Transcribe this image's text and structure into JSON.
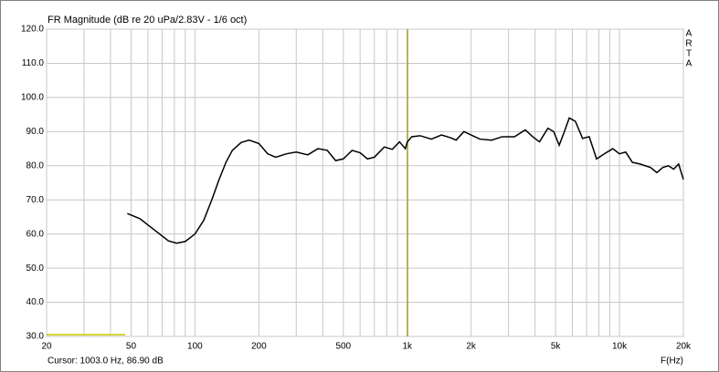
{
  "chart_data": {
    "type": "line",
    "title": "FR Magnitude (dB re 20 uPa/2.83V - 1/6 oct)",
    "side_label": "ARTA",
    "x_label": "F(Hz)",
    "cursor_label": "Cursor: 1003.0 Hz, 86.90 dB",
    "cursor_x": 1003.0,
    "cursor_color": "#a0a030",
    "xscale": "log",
    "grid": true,
    "xlim": [
      20,
      20000
    ],
    "ylim": [
      30,
      120
    ],
    "xticks": [
      20,
      50,
      100,
      200,
      500,
      {
        "value": 1000,
        "label": "1k"
      },
      {
        "value": 2000,
        "label": "2k"
      },
      {
        "value": 5000,
        "label": "5k"
      },
      {
        "value": 10000,
        "label": "10k"
      },
      {
        "value": 20000,
        "label": "20k"
      }
    ],
    "xminorticks": [
      30,
      40,
      60,
      70,
      80,
      90,
      300,
      400,
      600,
      700,
      800,
      900,
      3000,
      4000,
      6000,
      7000,
      8000,
      9000
    ],
    "yticks": [
      {
        "value": 30,
        "label": "30.0"
      },
      {
        "value": 40,
        "label": "40.0"
      },
      {
        "value": 50,
        "label": "50.0"
      },
      {
        "value": 60,
        "label": "60.0"
      },
      {
        "value": 70,
        "label": "70.0"
      },
      {
        "value": 80,
        "label": "80.0"
      },
      {
        "value": 90,
        "label": "90.0"
      },
      {
        "value": 100,
        "label": "100.0"
      },
      {
        "value": 110,
        "label": "110.0"
      },
      {
        "value": 120,
        "label": "120.0"
      }
    ],
    "series": [
      {
        "color": "#000000",
        "x": [
          48,
          55,
          65,
          75,
          82,
          90,
          100,
          110,
          120,
          130,
          140,
          150,
          165,
          180,
          200,
          220,
          240,
          270,
          300,
          340,
          380,
          420,
          460,
          500,
          550,
          600,
          650,
          700,
          780,
          850,
          920,
          980,
          1000,
          1050,
          1150,
          1300,
          1450,
          1600,
          1700,
          1850,
          2000,
          2200,
          2500,
          2800,
          3200,
          3600,
          3900,
          4200,
          4600,
          4900,
          5200,
          5500,
          5800,
          6200,
          6700,
          7200,
          7800,
          8500,
          9300,
          10000,
          10700,
          11500,
          12500,
          14000,
          15000,
          16000,
          17000,
          18000,
          19000,
          20000
        ],
        "values": [
          66,
          64.5,
          61,
          58,
          57.3,
          57.8,
          60,
          64,
          70,
          76,
          81,
          84.5,
          86.8,
          87.5,
          86.5,
          83.5,
          82.5,
          83.5,
          84,
          83.2,
          85,
          84.5,
          81.5,
          82,
          84.5,
          83.8,
          82,
          82.5,
          85.5,
          84.8,
          87,
          85,
          86.9,
          88.5,
          88.8,
          87.8,
          89,
          88.2,
          87.5,
          90,
          89,
          87.8,
          87.5,
          88.5,
          88.5,
          90.5,
          88.5,
          87,
          91,
          90,
          86,
          90,
          94,
          93,
          88,
          88.5,
          82,
          83.5,
          85,
          83.5,
          84,
          81,
          80.5,
          79.5,
          78,
          79.5,
          80,
          79,
          80.5,
          76
        ]
      },
      {
        "color": "#c8c800",
        "x": [
          20,
          47
        ],
        "values": [
          30.5,
          30.5
        ]
      }
    ]
  }
}
